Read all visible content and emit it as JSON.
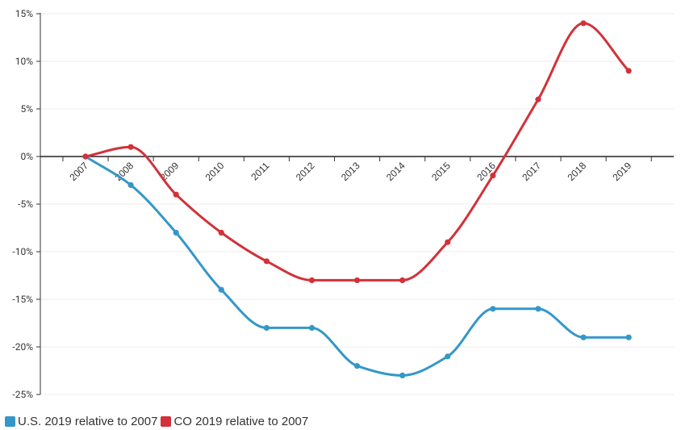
{
  "chart_data": {
    "type": "line",
    "categories": [
      "2007",
      "2008",
      "2009",
      "2010",
      "2011",
      "2012",
      "2013",
      "2014",
      "2015",
      "2016",
      "2017",
      "2018",
      "2019"
    ],
    "series": [
      {
        "name": "U.S. 2019 relative to 2007",
        "color": "#3497c9",
        "values": [
          0,
          -3,
          -8,
          -14,
          -18,
          -18,
          -22,
          -23,
          -21,
          -16,
          -16,
          -19,
          -19
        ]
      },
      {
        "name": "CO 2019 relative to 2007",
        "color": "#d13239",
        "values": [
          0,
          1,
          -4,
          -8,
          -11,
          -13,
          -13,
          -13,
          -9,
          -2,
          6,
          14,
          9
        ]
      }
    ],
    "y_ticks": [
      "15%",
      "10%",
      "5%",
      "0%",
      "-5%",
      "-10%",
      "-15%",
      "-20%",
      "-25%"
    ],
    "ylim": [
      -25,
      15
    ],
    "grid": true,
    "legend_position": "bottom-left"
  }
}
